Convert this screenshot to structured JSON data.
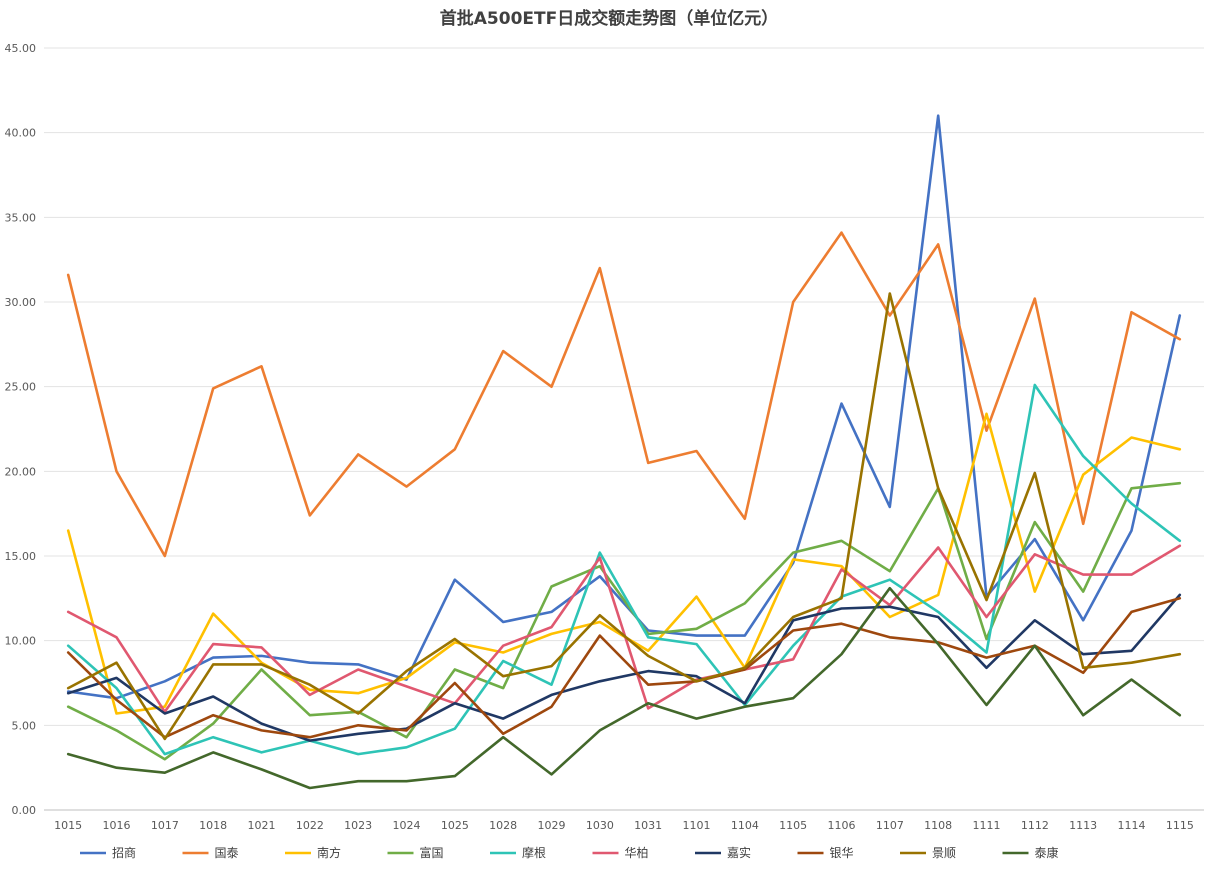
{
  "chart_data": {
    "type": "line",
    "title": "首批A500ETF日成交额走势图（单位亿元）",
    "xlabel": "",
    "ylabel": "",
    "ylim": [
      0,
      45
    ],
    "yticks": [
      "0.00",
      "5.00",
      "10.00",
      "15.00",
      "20.00",
      "25.00",
      "30.00",
      "35.00",
      "40.00",
      "45.00"
    ],
    "grid": true,
    "legend_position": "bottom",
    "categories": [
      "1015",
      "1016",
      "1017",
      "1018",
      "1021",
      "1022",
      "1023",
      "1024",
      "1025",
      "1028",
      "1029",
      "1030",
      "1031",
      "1101",
      "1104",
      "1105",
      "1106",
      "1107",
      "1108",
      "1111",
      "1112",
      "1113",
      "1114",
      "1115"
    ],
    "series": [
      {
        "name": "招商",
        "color": "#4472C4",
        "values": [
          7.0,
          6.6,
          7.6,
          9.0,
          9.1,
          8.7,
          8.6,
          7.7,
          13.6,
          11.1,
          11.7,
          13.8,
          10.6,
          10.3,
          10.3,
          14.6,
          24.0,
          17.9,
          41.0,
          12.6,
          16.0,
          11.2,
          16.5,
          29.2
        ]
      },
      {
        "name": "国泰",
        "color": "#ED7D31",
        "values": [
          31.6,
          20.0,
          15.0,
          24.9,
          26.2,
          17.4,
          21.0,
          19.1,
          21.3,
          27.1,
          25.0,
          32.0,
          20.5,
          21.2,
          17.2,
          30.0,
          34.1,
          29.2,
          33.4,
          22.4,
          30.2,
          16.9,
          29.4,
          27.8
        ]
      },
      {
        "name": "南方",
        "color": "#FFC000",
        "values": [
          16.5,
          5.7,
          6.1,
          11.6,
          8.7,
          7.1,
          6.9,
          7.8,
          9.9,
          9.3,
          10.4,
          11.1,
          9.4,
          12.6,
          8.4,
          14.8,
          14.4,
          11.4,
          12.7,
          23.4,
          12.9,
          19.8,
          22.0,
          21.3
        ]
      },
      {
        "name": "富国",
        "color": "#70AD47",
        "values": [
          6.1,
          4.7,
          3.0,
          5.1,
          8.3,
          5.6,
          5.8,
          4.3,
          8.3,
          7.2,
          13.2,
          14.4,
          10.4,
          10.7,
          12.2,
          15.2,
          15.9,
          14.1,
          19.0,
          10.1,
          17.0,
          12.9,
          19.0,
          19.3
        ]
      },
      {
        "name": "摩根",
        "color": "#2EC4B6",
        "values": [
          9.7,
          7.2,
          3.3,
          4.3,
          3.4,
          4.1,
          3.3,
          3.7,
          4.8,
          8.8,
          7.4,
          15.2,
          10.2,
          9.8,
          6.2,
          9.7,
          12.6,
          13.6,
          11.7,
          9.3,
          25.1,
          20.9,
          18.1,
          15.9
        ]
      },
      {
        "name": "华柏",
        "color": "#E05870",
        "values": [
          11.7,
          10.2,
          5.8,
          9.8,
          9.6,
          6.8,
          8.3,
          7.3,
          6.3,
          9.7,
          10.8,
          14.9,
          6.0,
          7.7,
          8.3,
          8.9,
          14.2,
          12.1,
          15.5,
          11.4,
          15.1,
          13.9,
          13.9,
          15.6
        ]
      },
      {
        "name": "嘉实",
        "color": "#203864",
        "values": [
          6.9,
          7.8,
          5.7,
          6.7,
          5.1,
          4.1,
          4.5,
          4.8,
          6.3,
          5.4,
          6.8,
          7.6,
          8.2,
          7.9,
          6.3,
          11.2,
          11.9,
          12.0,
          11.4,
          8.4,
          11.2,
          9.2,
          9.4,
          12.7
        ]
      },
      {
        "name": "银华",
        "color": "#9E480E",
        "values": [
          9.3,
          6.5,
          4.3,
          5.6,
          4.7,
          4.3,
          5.0,
          4.7,
          7.5,
          4.5,
          6.1,
          10.3,
          7.4,
          7.6,
          8.3,
          10.6,
          11.0,
          10.2,
          9.9,
          9.0,
          9.7,
          8.1,
          11.7,
          12.5
        ]
      },
      {
        "name": "景顺",
        "color": "#997300",
        "values": [
          7.2,
          8.7,
          4.2,
          8.6,
          8.6,
          7.4,
          5.7,
          8.2,
          10.1,
          7.9,
          8.5,
          11.5,
          9.1,
          7.6,
          8.4,
          11.4,
          12.5,
          30.5,
          19.0,
          12.4,
          19.9,
          8.4,
          8.7,
          9.2
        ]
      },
      {
        "name": "泰康",
        "color": "#43682B",
        "values": [
          3.3,
          2.5,
          2.2,
          3.4,
          2.4,
          1.3,
          1.7,
          1.7,
          2.0,
          4.3,
          2.1,
          4.7,
          6.3,
          5.4,
          6.1,
          6.6,
          9.2,
          13.1,
          9.8,
          6.2,
          9.7,
          5.6,
          7.7,
          5.6
        ]
      }
    ]
  }
}
